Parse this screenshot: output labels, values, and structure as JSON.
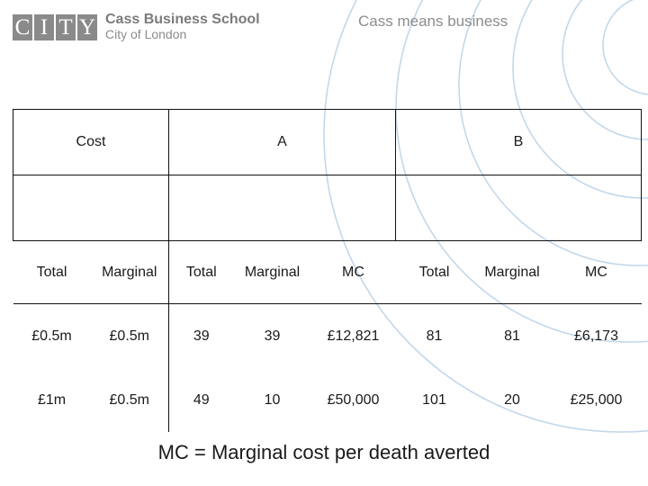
{
  "header": {
    "logo_letters": [
      "C",
      "I",
      "T",
      "Y"
    ],
    "school_name": "Cass Business School",
    "school_sub": "City of London",
    "tagline": "Cass means business"
  },
  "colors": {
    "logo_gray": "#8a8a8a",
    "arc_blue": "#c3d7ea",
    "text": "#1a1a1a"
  },
  "table": {
    "group_headers": {
      "cost": "Cost",
      "a": "A",
      "b": "B"
    },
    "sub_headers": [
      "Total",
      "Marginal",
      "Total",
      "Marginal",
      "MC",
      "Total",
      "Marginal",
      "MC"
    ],
    "rows": [
      [
        "£0.5m",
        "£0.5m",
        "39",
        "39",
        "£12,821",
        "81",
        "81",
        "£6,173"
      ],
      [
        "£1m",
        "£0.5m",
        "49",
        "10",
        "£50,000",
        "101",
        "20",
        "£25,000"
      ]
    ]
  },
  "footnote": "MC = Marginal cost per death averted"
}
